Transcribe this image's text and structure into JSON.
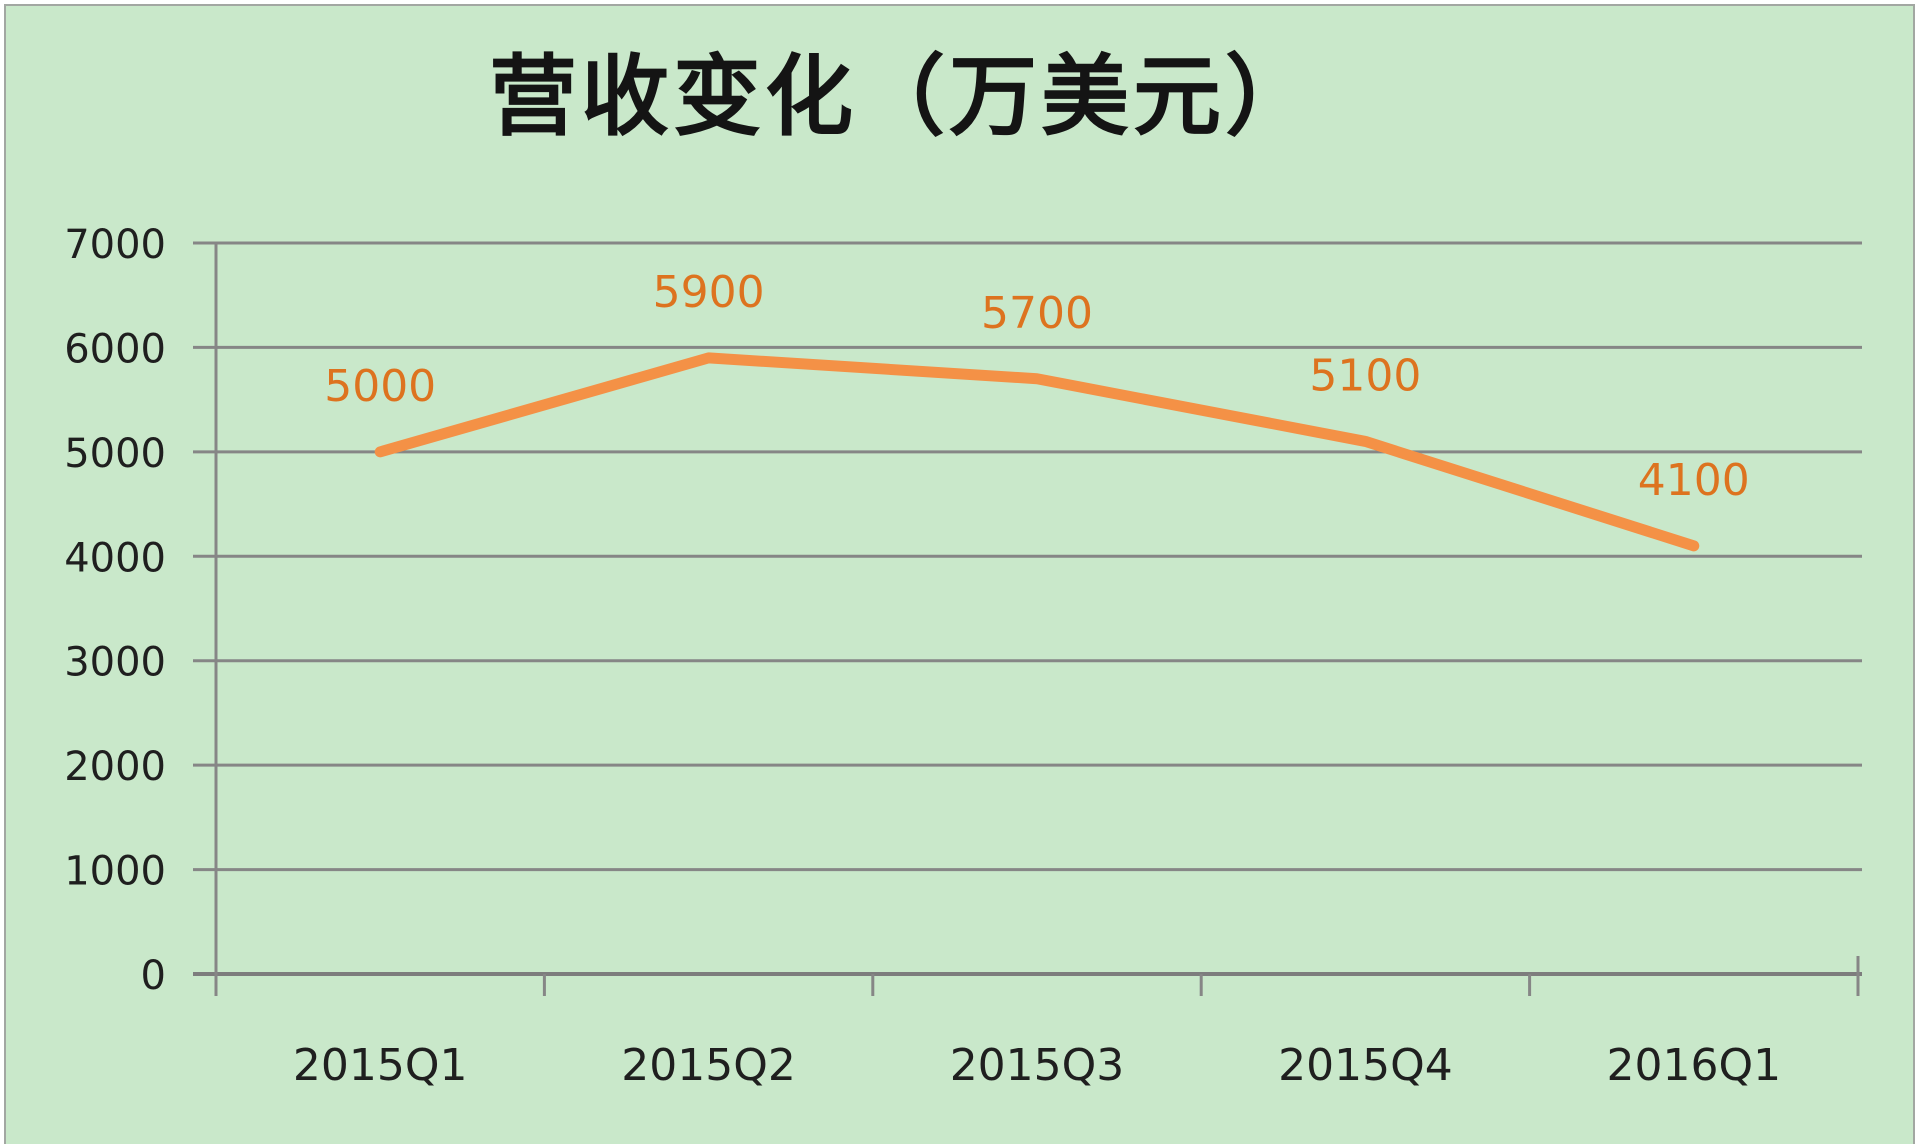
{
  "chart_data": {
    "type": "line",
    "title": "营收变化（万美元）",
    "categories": [
      "2015Q1",
      "2015Q2",
      "2015Q3",
      "2015Q4",
      "2016Q1"
    ],
    "values": [
      5000,
      5900,
      5700,
      5100,
      4100
    ],
    "data_labels": [
      "5000",
      "5900",
      "5700",
      "5100",
      "4100"
    ],
    "y_ticks": [
      "0",
      "1000",
      "2000",
      "3000",
      "4000",
      "5000",
      "6000",
      "7000"
    ],
    "ylim": [
      0,
      7000
    ],
    "xlabel": "",
    "ylabel": "",
    "grid": true,
    "legend_position": "none",
    "colors": {
      "background": "#c9e8ca",
      "line": "#f49146",
      "data_label": "#dd731f",
      "grid": "#868686",
      "axis": "#7d7d7d",
      "text": "#1f1f1f",
      "border": "#a2a7a2"
    }
  }
}
